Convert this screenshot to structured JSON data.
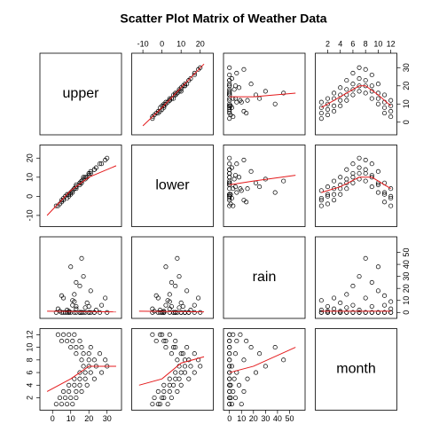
{
  "chart_data": {
    "type": "scatter_matrix",
    "title": "Scatter Plot Matrix of Weather Data",
    "variables": [
      {
        "name": "upper",
        "lim": [
          -5,
          36
        ],
        "ticks": [
          0,
          10,
          20,
          30
        ]
      },
      {
        "name": "lower",
        "lim": [
          -14,
          25
        ],
        "ticks": [
          -10,
          0,
          10,
          20
        ]
      },
      {
        "name": "rain",
        "lim": [
          -2,
          60
        ],
        "ticks": [
          0,
          10,
          20,
          30,
          40,
          50
        ]
      },
      {
        "name": "month",
        "lim": [
          0.6,
          12.4
        ],
        "ticks": [
          2,
          4,
          6,
          8,
          10,
          12
        ]
      }
    ],
    "point_color": "#000000",
    "smooth_color": "#e41a1c",
    "observations": {
      "upper": [
        5,
        8,
        11,
        2,
        7,
        10,
        13,
        4,
        9,
        13,
        16,
        6,
        12,
        15,
        19,
        9,
        15,
        18,
        23,
        12,
        18,
        21,
        27,
        15,
        20,
        24,
        30,
        17,
        20,
        23,
        29,
        16,
        17,
        20,
        26,
        13,
        13,
        16,
        21,
        10,
        8,
        11,
        15,
        5,
        6,
        9,
        12,
        3
      ],
      "lower": [
        -2,
        -1,
        3,
        -5,
        0,
        1,
        5,
        -4,
        1,
        4,
        8,
        -2,
        4,
        6,
        10,
        1,
        7,
        9,
        14,
        4,
        10,
        12,
        17,
        7,
        12,
        15,
        20,
        9,
        12,
        14,
        19,
        8,
        10,
        11,
        17,
        5,
        6,
        7,
        13,
        2,
        1,
        2,
        7,
        -3,
        -1,
        0,
        4,
        -5
      ],
      "rain": [
        0,
        2,
        10,
        0,
        0,
        0,
        5,
        1,
        0,
        3,
        0,
        12,
        0,
        0,
        8,
        1,
        0,
        4,
        0,
        15,
        0,
        0,
        6,
        22,
        0,
        2,
        0,
        30,
        0,
        0,
        12,
        45,
        0,
        5,
        0,
        25,
        0,
        0,
        18,
        38,
        0,
        6,
        0,
        14,
        0,
        0,
        9,
        3
      ],
      "month": [
        1,
        1,
        1,
        1,
        2,
        2,
        2,
        2,
        3,
        3,
        3,
        3,
        4,
        4,
        4,
        4,
        5,
        5,
        5,
        5,
        6,
        6,
        6,
        6,
        7,
        7,
        7,
        7,
        8,
        8,
        8,
        8,
        9,
        9,
        9,
        9,
        10,
        10,
        10,
        10,
        11,
        11,
        11,
        11,
        12,
        12,
        12,
        12
      ]
    },
    "smooth": {
      "upper": {
        "lower": {
          "x": [
            -10,
            0,
            10,
            22
          ],
          "y": [
            -2,
            8,
            19,
            32
          ]
        },
        "rain": {
          "x": [
            0,
            20,
            55
          ],
          "y": [
            14,
            14,
            16
          ]
        },
        "month": {
          "x": [
            1,
            4,
            7,
            8,
            10,
            12
          ],
          "y": [
            8,
            14,
            20,
            20,
            15,
            9
          ]
        }
      },
      "lower": {
        "upper": {
          "x": [
            -3,
            10,
            20,
            35
          ],
          "y": [
            -10,
            3,
            10,
            16
          ]
        },
        "rain": {
          "x": [
            0,
            20,
            55
          ],
          "y": [
            6,
            8,
            11
          ]
        },
        "month": {
          "x": [
            1,
            4,
            7,
            9,
            12
          ],
          "y": [
            2,
            5,
            10,
            10,
            4
          ]
        }
      },
      "rain": {
        "upper": {
          "x": [
            -3,
            35
          ],
          "y": [
            1,
            0.5
          ]
        },
        "lower": {
          "x": [
            -12,
            22
          ],
          "y": [
            1,
            0.5
          ]
        },
        "month": {
          "x": [
            1,
            12
          ],
          "y": [
            1,
            1
          ]
        }
      },
      "month": {
        "upper": {
          "x": [
            -3,
            10,
            20,
            35
          ],
          "y": [
            3,
            5,
            7,
            7
          ]
        },
        "lower": {
          "x": [
            -12,
            0,
            10,
            22
          ],
          "y": [
            4,
            5,
            7.5,
            8.5
          ]
        },
        "rain": {
          "x": [
            0,
            20,
            55
          ],
          "y": [
            6,
            7,
            10
          ]
        }
      }
    }
  }
}
